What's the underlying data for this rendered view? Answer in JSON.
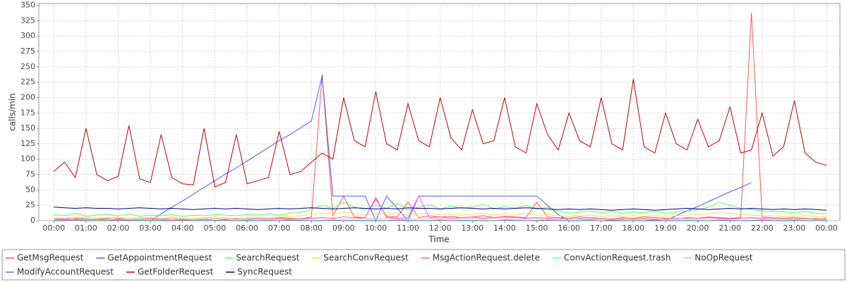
{
  "chart_data": {
    "type": "line",
    "ylabel": "calls/min",
    "xlabel": "Time",
    "xlim": [
      -28,
      1465
    ],
    "ylim": [
      0,
      353
    ],
    "yticks": [
      0,
      25,
      50,
      75,
      100,
      125,
      150,
      175,
      200,
      225,
      250,
      275,
      300,
      325,
      350
    ],
    "xticks": [
      {
        "value": 0,
        "label": "00:00"
      },
      {
        "value": 60,
        "label": "01:00"
      },
      {
        "value": 120,
        "label": "02:00"
      },
      {
        "value": 180,
        "label": "03:00"
      },
      {
        "value": 240,
        "label": "04:00"
      },
      {
        "value": 300,
        "label": "05:00"
      },
      {
        "value": 360,
        "label": "06:00"
      },
      {
        "value": 420,
        "label": "07:00"
      },
      {
        "value": 480,
        "label": "08:00"
      },
      {
        "value": 540,
        "label": "09:00"
      },
      {
        "value": 600,
        "label": "10:00"
      },
      {
        "value": 660,
        "label": "11:00"
      },
      {
        "value": 720,
        "label": "12:00"
      },
      {
        "value": 780,
        "label": "13:00"
      },
      {
        "value": 840,
        "label": "14:00"
      },
      {
        "value": 900,
        "label": "15:00"
      },
      {
        "value": 960,
        "label": "16:00"
      },
      {
        "value": 1020,
        "label": "17:00"
      },
      {
        "value": 1080,
        "label": "18:00"
      },
      {
        "value": 1140,
        "label": "19:00"
      },
      {
        "value": 1200,
        "label": "20:00"
      },
      {
        "value": 1260,
        "label": "21:00"
      },
      {
        "value": 1320,
        "label": "22:00"
      },
      {
        "value": 1380,
        "label": "23:00"
      },
      {
        "value": 1440,
        "label": "00:00"
      }
    ],
    "grid": true,
    "x": [
      0,
      20,
      40,
      60,
      80,
      100,
      120,
      140,
      160,
      180,
      200,
      220,
      240,
      260,
      280,
      300,
      320,
      340,
      360,
      380,
      400,
      420,
      440,
      460,
      480,
      500,
      520,
      540,
      560,
      580,
      600,
      620,
      640,
      660,
      680,
      700,
      720,
      740,
      760,
      780,
      800,
      820,
      840,
      860,
      880,
      900,
      920,
      940,
      960,
      980,
      1000,
      1020,
      1040,
      1060,
      1080,
      1100,
      1120,
      1140,
      1160,
      1180,
      1200,
      1220,
      1240,
      1260,
      1280,
      1300,
      1320,
      1340,
      1360,
      1380,
      1400,
      1420,
      1440
    ],
    "series": [
      {
        "name": "GetMsgRequest",
        "color": "#ff5555",
        "values": [
          3,
          2,
          4,
          3,
          2,
          3,
          4,
          2,
          3,
          3,
          2,
          4,
          3,
          2,
          3,
          4,
          3,
          2,
          3,
          4,
          3,
          5,
          4,
          3,
          6,
          238,
          8,
          40,
          6,
          5,
          35,
          7,
          6,
          30,
          5,
          8,
          6,
          7,
          5,
          6,
          8,
          5,
          7,
          6,
          5,
          30,
          6,
          5,
          4,
          6,
          5,
          4,
          3,
          5,
          4,
          6,
          5,
          4,
          3,
          5,
          4,
          6,
          5,
          4,
          5,
          338,
          6,
          5,
          4,
          5,
          4,
          3,
          4
        ]
      },
      {
        "name": "GetAppointmentRequest",
        "color": "#5555ff",
        "values": [
          null,
          null,
          null,
          null,
          null,
          null,
          null,
          null,
          null,
          0,
          11,
          22,
          32,
          43,
          54,
          65,
          76,
          86,
          97,
          108,
          119,
          130,
          140,
          151,
          162,
          236,
          40,
          40,
          40,
          40,
          0,
          40,
          20,
          0,
          40,
          40,
          40,
          40,
          40,
          40,
          40,
          40,
          40,
          40,
          40,
          40,
          25,
          10,
          0,
          0,
          0,
          0,
          0,
          0,
          0,
          0,
          0,
          0,
          8,
          16,
          23,
          31,
          39,
          47,
          54,
          62,
          null,
          null,
          null,
          null,
          null,
          null,
          null
        ]
      },
      {
        "name": "SearchRequest",
        "color": "#55ff55",
        "values": [
          10,
          8,
          12,
          7,
          9,
          10,
          8,
          11,
          7,
          9,
          8,
          10,
          7,
          9,
          8,
          10,
          9,
          8,
          10,
          9,
          11,
          9,
          12,
          14,
          18,
          25,
          20,
          30,
          22,
          18,
          25,
          20,
          28,
          18,
          22,
          26,
          19,
          24,
          20,
          22,
          27,
          19,
          23,
          20,
          25,
          18,
          22,
          15,
          12,
          14,
          16,
          13,
          15,
          12,
          14,
          13,
          15,
          12,
          14,
          16,
          18,
          22,
          30,
          25,
          20,
          18,
          16,
          15,
          14,
          13,
          15,
          12,
          11
        ]
      },
      {
        "name": "SearchConvRequest",
        "color": "#e8e840",
        "values": [
          5,
          4,
          6,
          5,
          4,
          5,
          6,
          4,
          5,
          5,
          4,
          6,
          5,
          4,
          5,
          6,
          5,
          4,
          5,
          6,
          5,
          6,
          7,
          8,
          10,
          12,
          10,
          14,
          11,
          9,
          12,
          10,
          13,
          9,
          11,
          12,
          10,
          11,
          9,
          10,
          12,
          9,
          11,
          10,
          12,
          9,
          10,
          8,
          7,
          8,
          9,
          7,
          8,
          7,
          8,
          7,
          8,
          7,
          8,
          9,
          10,
          11,
          13,
          12,
          10,
          9,
          8,
          8,
          7,
          7,
          8,
          7,
          6
        ]
      },
      {
        "name": "MsgActionRequest.delete",
        "color": "#ff55ff",
        "values": [
          2,
          1,
          2,
          1,
          2,
          1,
          2,
          1,
          2,
          1,
          2,
          1,
          2,
          1,
          2,
          1,
          2,
          3,
          2,
          3,
          2,
          3,
          2,
          3,
          4,
          5,
          4,
          6,
          5,
          4,
          38,
          5,
          4,
          5,
          40,
          5,
          6,
          4,
          5,
          6,
          4,
          5,
          6,
          5,
          4,
          5,
          4,
          3,
          4,
          3,
          2,
          3,
          2,
          3,
          2,
          3,
          2,
          3,
          4,
          3,
          4,
          5,
          4,
          3,
          4,
          5,
          4,
          3,
          3,
          2,
          3,
          2,
          2
        ]
      },
      {
        "name": "ConvActionRequest.trash",
        "color": "#55ffff",
        "values": [
          1,
          0,
          1,
          1,
          0,
          1,
          1,
          0,
          1,
          1,
          1,
          0,
          1,
          1,
          0,
          1,
          1,
          0,
          1,
          1,
          1,
          0,
          1,
          1,
          0,
          1,
          1,
          0,
          1,
          1,
          1,
          0,
          1,
          1,
          0,
          1,
          1,
          0,
          1,
          1,
          1,
          0,
          1,
          1,
          0,
          1,
          1,
          0,
          1,
          1,
          1,
          0,
          1,
          1,
          0,
          1,
          1,
          0,
          1,
          1,
          1,
          0,
          1,
          1,
          0,
          1,
          1,
          0,
          1,
          1,
          1,
          0,
          1
        ]
      },
      {
        "name": "NoOpRequest",
        "color": "#ffafaf",
        "values": [
          3,
          4,
          3,
          2,
          3,
          4,
          3,
          2,
          3,
          4,
          3,
          4,
          3,
          2,
          3,
          4,
          3,
          2,
          3,
          4,
          3,
          4,
          3,
          2,
          3,
          4,
          3,
          2,
          3,
          4,
          3,
          4,
          3,
          2,
          3,
          4,
          3,
          2,
          3,
          4,
          3,
          4,
          3,
          2,
          3,
          4,
          3,
          2,
          3,
          4,
          3,
          4,
          3,
          2,
          3,
          4,
          3,
          2,
          3,
          4,
          3,
          4,
          3,
          2,
          3,
          4,
          3,
          2,
          3,
          4,
          3,
          4,
          3
        ]
      },
      {
        "name": "ModifyAccountRequest",
        "color": "#7f6f8f",
        "values": [
          0,
          0,
          1,
          0,
          0,
          0,
          1,
          0,
          0,
          0,
          0,
          0,
          1,
          0,
          0,
          0,
          1,
          0,
          0,
          0,
          0,
          0,
          1,
          0,
          0,
          0,
          1,
          0,
          0,
          0,
          0,
          0,
          1,
          0,
          0,
          0,
          1,
          0,
          0,
          0,
          0,
          0,
          1,
          0,
          0,
          0,
          1,
          0,
          0,
          0,
          0,
          0,
          1,
          0,
          0,
          0,
          1,
          0,
          0,
          0,
          0,
          0,
          1,
          0,
          0,
          0,
          1,
          0,
          0,
          0,
          0,
          0,
          0
        ]
      },
      {
        "name": "GetFolderRequest",
        "color": "#c00000",
        "values": [
          80,
          95,
          70,
          150,
          75,
          65,
          72,
          155,
          68,
          62,
          140,
          70,
          60,
          58,
          150,
          55,
          62,
          140,
          60,
          65,
          70,
          145,
          75,
          80,
          95,
          110,
          100,
          200,
          130,
          120,
          210,
          125,
          115,
          190,
          130,
          120,
          200,
          135,
          115,
          180,
          125,
          130,
          200,
          120,
          110,
          190,
          140,
          115,
          175,
          130,
          120,
          200,
          125,
          115,
          230,
          120,
          110,
          175,
          125,
          115,
          165,
          120,
          130,
          185,
          110,
          115,
          175,
          105,
          120,
          195,
          110,
          95,
          90
        ]
      },
      {
        "name": "SyncRequest",
        "color": "#000080",
        "values": [
          22,
          21,
          20,
          21,
          20,
          20,
          19,
          20,
          21,
          20,
          19,
          20,
          19,
          18,
          19,
          20,
          19,
          20,
          19,
          18,
          19,
          20,
          19,
          20,
          21,
          20,
          19,
          20,
          21,
          20,
          19,
          20,
          19,
          21,
          20,
          20,
          19,
          20,
          21,
          20,
          19,
          20,
          19,
          20,
          21,
          20,
          19,
          18,
          19,
          18,
          19,
          18,
          17,
          18,
          19,
          18,
          17,
          18,
          19,
          20,
          19,
          18,
          19,
          20,
          19,
          20,
          19,
          18,
          19,
          18,
          19,
          18,
          17
        ]
      }
    ]
  }
}
